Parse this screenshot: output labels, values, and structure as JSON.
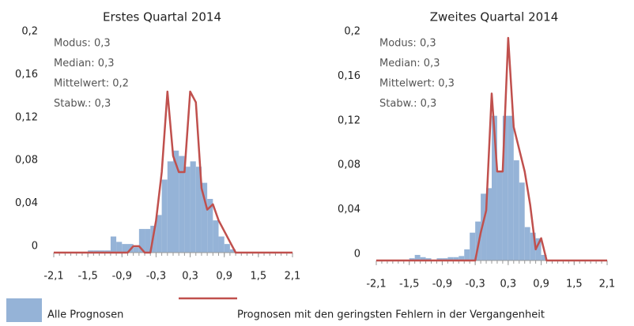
{
  "legend": [
    {
      "name": "Alle Prognosen",
      "color": "#95b3d7"
    },
    {
      "name": "Prognosen mit den geringsten Fehlern in der Vergangenheit",
      "color": "#c0504d"
    }
  ],
  "chart_data": [
    {
      "type": "histogram",
      "title": "Erstes Quartal 2014",
      "annotations": [
        "Modus: 0,3",
        "Median: 0,3",
        "Mittelwert: 0,2",
        "Stabw.: 0,3"
      ],
      "bins": [
        -2.1,
        -2,
        -1.9,
        -1.8,
        -1.7,
        -1.6,
        -1.5,
        -1.4,
        -1.3,
        -1.2,
        -1.1,
        -1,
        -0.9,
        -0.8,
        -0.7,
        -0.6,
        -0.5,
        -0.4,
        -0.3,
        -0.2,
        -0.1,
        0,
        0.1,
        0.2,
        0.3,
        0.4,
        0.5,
        0.6,
        0.7,
        0.8,
        0.9,
        1,
        1.1,
        1.2,
        1.3,
        1.4,
        1.5,
        1.6,
        1.7,
        1.8,
        1.9,
        2,
        2.1
      ],
      "values": [
        0,
        0,
        0,
        0,
        0,
        0,
        0.002,
        0.002,
        0.002,
        0.002,
        0.015,
        0.01,
        0.008,
        0.008,
        0.005,
        0.022,
        0.022,
        0.025,
        0.035,
        0.068,
        0.085,
        0.095,
        0.09,
        0.08,
        0.085,
        0.08,
        0.065,
        0.05,
        0.03,
        0.015,
        0.008,
        0.003,
        0,
        0,
        0,
        0,
        0,
        0,
        0,
        0,
        0,
        0
      ],
      "line": {
        "x": [
          -2.1,
          -2,
          -1.9,
          -1.8,
          -1.7,
          -1.6,
          -1.5,
          -1.4,
          -1.3,
          -1.2,
          -1.1,
          -1,
          -0.9,
          -0.8,
          -0.7,
          -0.6,
          -0.5,
          -0.4,
          -0.3,
          -0.2,
          -0.1,
          0,
          0.1,
          0.2,
          0.3,
          0.4,
          0.5,
          0.6,
          0.7,
          0.8,
          0.9,
          1,
          1.1,
          1.2,
          1.3,
          1.4,
          1.5,
          1.6,
          1.7,
          1.8,
          1.9,
          2,
          2.1
        ],
        "values": [
          0,
          0,
          0,
          0,
          0,
          0,
          0,
          0,
          0,
          0,
          0,
          0,
          0,
          0,
          0.006,
          0.006,
          0,
          0,
          0.03,
          0.075,
          0.15,
          0.09,
          0.075,
          0.075,
          0.15,
          0.14,
          0.06,
          0.04,
          0.045,
          0.03,
          0.02,
          0.01,
          0,
          0,
          0,
          0,
          0,
          0,
          0,
          0,
          0,
          0,
          0
        ]
      },
      "xlim": [
        -2.1,
        2.1
      ],
      "xticks": [
        {
          "value": -2.1,
          "label": "-2,1"
        },
        {
          "value": -1.5,
          "label": "-1,5"
        },
        {
          "value": -0.9,
          "label": "-0,9"
        },
        {
          "value": -0.3,
          "label": "-0,3"
        },
        {
          "value": 0.3,
          "label": "0,3"
        },
        {
          "value": 0.9,
          "label": "0,9"
        },
        {
          "value": 1.5,
          "label": "1,5"
        },
        {
          "value": 2.1,
          "label": "2,1"
        }
      ],
      "ylim": [
        0,
        0.2
      ],
      "yticks": [
        0,
        {
          "value": 0.04,
          "label": "0,04"
        },
        {
          "value": 0.08,
          "label": "0,08"
        },
        {
          "value": 0.12,
          "label": "0,12"
        },
        {
          "value": 0.16,
          "label": "0,16"
        },
        {
          "value": 0.2,
          "label": "0,2"
        }
      ]
    },
    {
      "type": "histogram",
      "title": "Zweites Quartal 2014",
      "annotations": [
        "Modus: 0,3",
        "Median: 0,3",
        "Mittelwert: 0,3",
        "Stabw.: 0,3"
      ],
      "bins": [
        -2.1,
        -2,
        -1.9,
        -1.8,
        -1.7,
        -1.6,
        -1.5,
        -1.4,
        -1.3,
        -1.2,
        -1.1,
        -1,
        -0.9,
        -0.8,
        -0.7,
        -0.6,
        -0.5,
        -0.4,
        -0.3,
        -0.2,
        -0.1,
        0,
        0.1,
        0.2,
        0.3,
        0.4,
        0.5,
        0.6,
        0.7,
        0.8,
        0.9,
        1,
        1.1,
        1.2,
        1.3,
        1.4,
        1.5,
        1.6,
        1.7,
        1.8,
        1.9,
        2,
        2.1
      ],
      "values": [
        0,
        0,
        0,
        0,
        0,
        0,
        0.002,
        0.005,
        0.003,
        0.002,
        0,
        0.002,
        0.002,
        0.003,
        0.003,
        0.004,
        0.01,
        0.025,
        0.035,
        0.06,
        0.065,
        0.13,
        0.08,
        0.13,
        0.13,
        0.09,
        0.07,
        0.03,
        0.025,
        0.02,
        0.005,
        0,
        0,
        0,
        0,
        0,
        0,
        0,
        0,
        0,
        0,
        0
      ],
      "line": {
        "x": [
          -2.1,
          -2,
          -1.9,
          -1.8,
          -1.7,
          -1.6,
          -1.5,
          -1.4,
          -1.3,
          -1.2,
          -1.1,
          -1,
          -0.9,
          -0.8,
          -0.7,
          -0.6,
          -0.5,
          -0.4,
          -0.3,
          -0.2,
          -0.1,
          0,
          0.1,
          0.2,
          0.3,
          0.4,
          0.5,
          0.6,
          0.7,
          0.8,
          0.9,
          1,
          1.1,
          1.2,
          1.3,
          1.4,
          1.5,
          1.6,
          1.7,
          1.8,
          1.9,
          2,
          2.1
        ],
        "values": [
          0,
          0,
          0,
          0,
          0,
          0,
          0,
          0,
          0,
          0,
          0,
          0,
          0,
          0,
          0,
          0,
          0,
          0,
          0,
          0.025,
          0.045,
          0.15,
          0.08,
          0.08,
          0.2,
          0.12,
          0.1,
          0.08,
          0.05,
          0.01,
          0.02,
          0,
          0,
          0,
          0,
          0,
          0,
          0,
          0,
          0,
          0,
          0,
          0
        ]
      },
      "xlim": [
        -2.1,
        2.1
      ],
      "xticks": [
        {
          "value": -2.1,
          "label": "-2,1"
        },
        {
          "value": -1.5,
          "label": "-1,5"
        },
        {
          "value": -0.9,
          "label": "-0,9"
        },
        {
          "value": -0.3,
          "label": "-0,3"
        },
        {
          "value": 0.3,
          "label": "0,3"
        },
        {
          "value": 0.9,
          "label": "0,9"
        },
        {
          "value": 1.5,
          "label": "1,5"
        },
        {
          "value": 2.1,
          "label": "2,1"
        }
      ],
      "ylim": [
        0,
        0.2
      ],
      "yticks": [
        0,
        {
          "value": 0.04,
          "label": "0,04"
        },
        {
          "value": 0.08,
          "label": "0,08"
        },
        {
          "value": 0.12,
          "label": "0,12"
        },
        {
          "value": 0.16,
          "label": "0,16"
        },
        {
          "value": 0.2,
          "label": "0,2"
        }
      ]
    }
  ]
}
